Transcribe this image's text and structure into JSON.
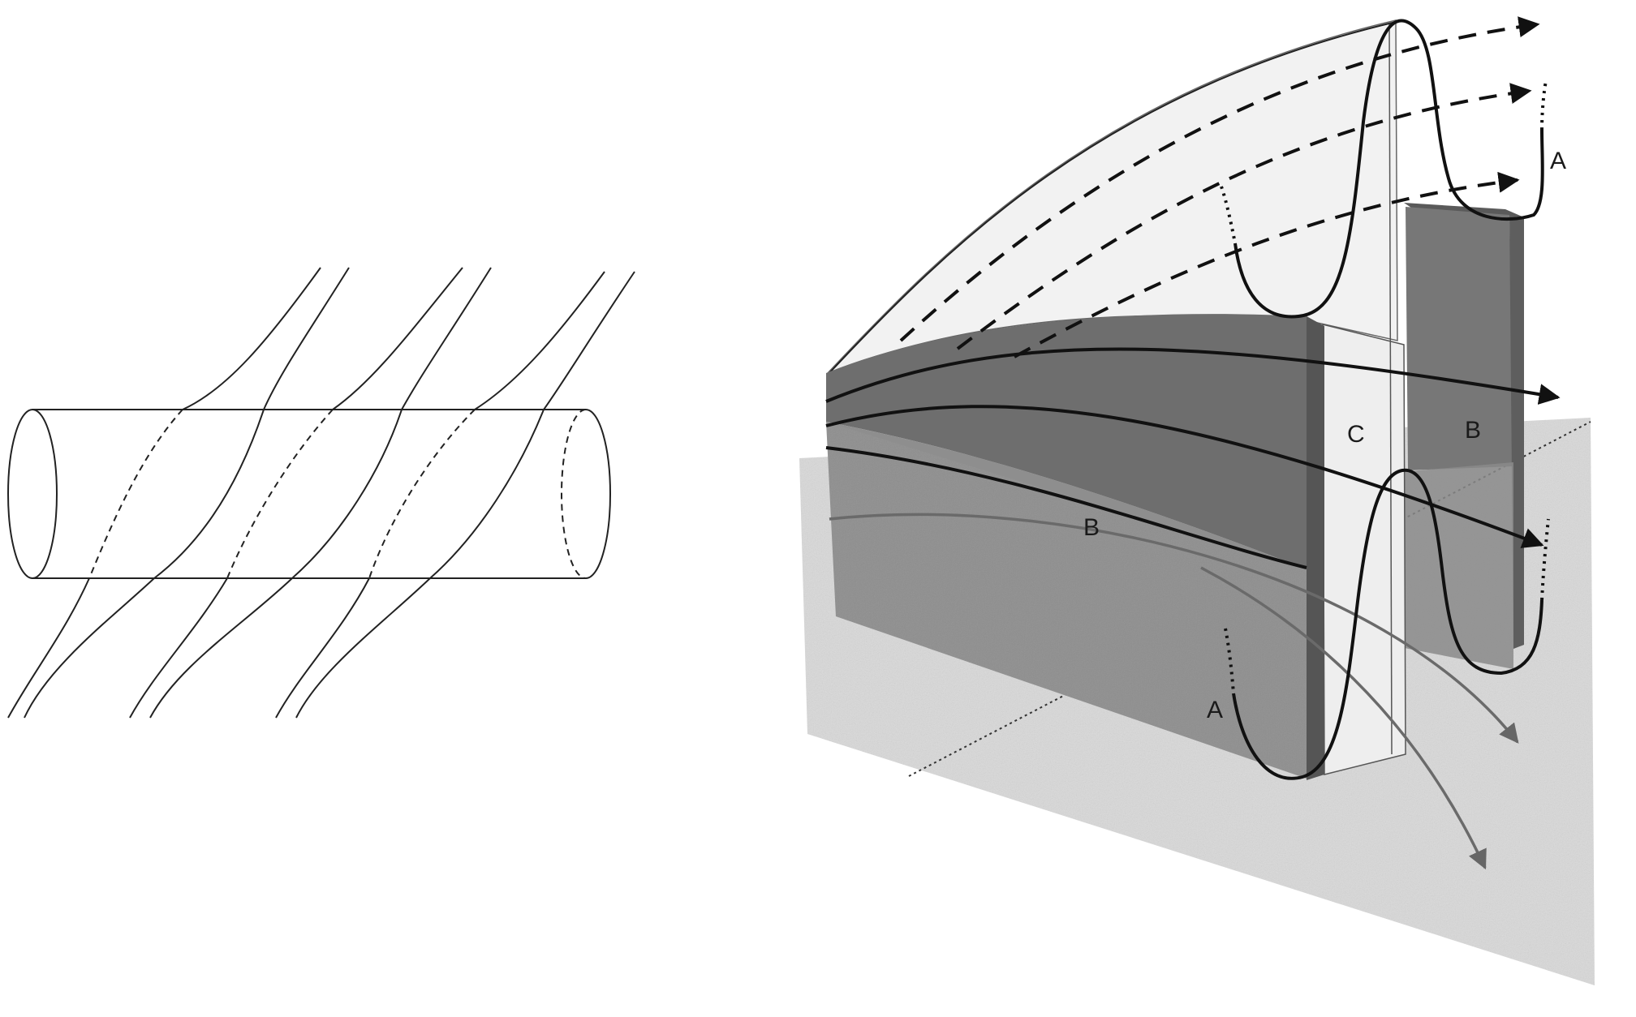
{
  "figure": {
    "labels": {
      "a_upper": "A",
      "a_lower": "A",
      "b_right": "B",
      "b_front": "B",
      "c": "C"
    },
    "colors": {
      "ground": "#d6d6d6",
      "slab_front": "#8f8f8f",
      "slab_top": "#6d6d6d",
      "c_gap": "#e9e9e9",
      "right_block": "#7a7a7a",
      "lines": "#111111",
      "grey_arrows": "#666666"
    }
  }
}
